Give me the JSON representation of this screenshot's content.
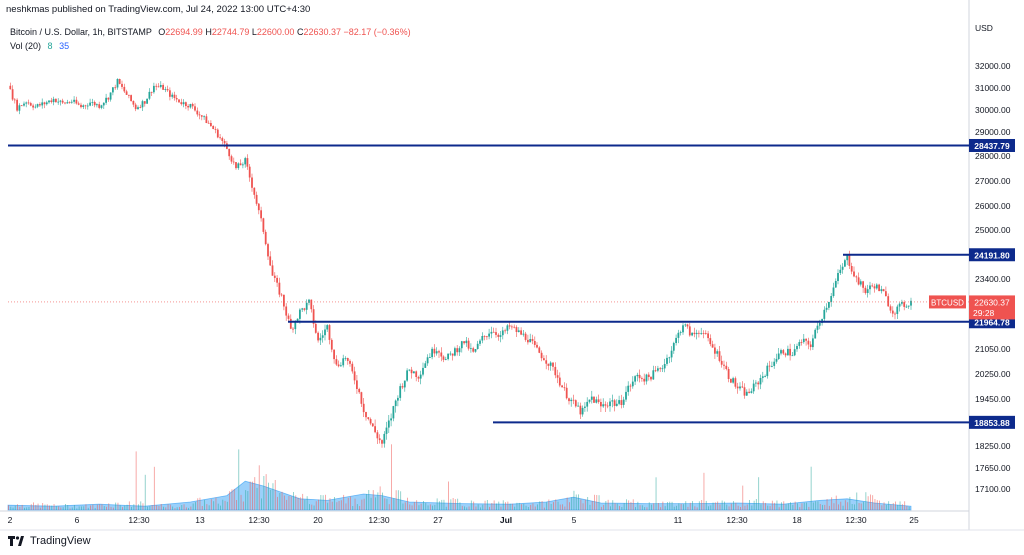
{
  "header": {
    "published": "neshkmas published on TradingView.com, Jul 24, 2022 13:00 UTC+4:30"
  },
  "legend": {
    "symbol": "Bitcoin / U.S. Dollar, 1h, BITSTAMP",
    "open_label": "O",
    "open": "22694.99",
    "high_label": "H",
    "high": "22744.79",
    "low_label": "L",
    "low": "22600.00",
    "close_label": "C",
    "close": "22630.37",
    "change": "−82.17 (−0.36%)",
    "vol_label": "Vol (20)",
    "vol_value": "8",
    "vol_ma": "35"
  },
  "footer": {
    "brand": "TradingView"
  },
  "colors": {
    "up": "#26a69a",
    "down": "#ef5350",
    "level_line": "#0d2a8c",
    "volume": "#2196f3",
    "price_tag": "#ef5350"
  },
  "chart_data": {
    "type": "candlestick",
    "currency_label": "USD",
    "y_ticks": [
      32000,
      31000,
      30000,
      29000,
      28000,
      27000,
      26000,
      25000,
      23400,
      21050,
      20250,
      19450,
      18250,
      17650,
      17100
    ],
    "y_tick_labels": [
      "32000.00",
      "31000.00",
      "30000.00",
      "29000.00",
      "28000.00",
      "27000.00",
      "26000.00",
      "25000.00",
      "23400.00",
      "21050.00",
      "20250.00",
      "19450.00",
      "18250.00",
      "17650.00",
      "17100.00"
    ],
    "x_tick_labels": [
      "2",
      "6",
      "12:30",
      "13",
      "12:30",
      "20",
      "12:30",
      "27",
      "Jul",
      "5",
      "11",
      "12:30",
      "18",
      "12:30",
      "25"
    ],
    "x_tick_bold": [
      false,
      false,
      false,
      false,
      false,
      false,
      false,
      false,
      true,
      false,
      false,
      false,
      false,
      false,
      false
    ],
    "horizontal_levels": [
      {
        "value": 28437.79,
        "label": "28437.79"
      },
      {
        "value": 24191.8,
        "label": "24191.80"
      },
      {
        "value": 21964.78,
        "label": "21964.78"
      },
      {
        "value": 18853.88,
        "label": "18853.88"
      }
    ],
    "current_price": {
      "symbol": "BTCUSD",
      "value": 22630.37,
      "label": "22630.37",
      "countdown": "29:28"
    },
    "close_path": [
      [
        0,
        31100
      ],
      [
        2,
        30100
      ],
      [
        4,
        30400
      ],
      [
        6,
        30150
      ],
      [
        8,
        30300
      ],
      [
        10,
        30500
      ],
      [
        12,
        30300
      ],
      [
        14,
        30400
      ],
      [
        16,
        30150
      ],
      [
        18,
        30350
      ],
      [
        20,
        30200
      ],
      [
        22,
        30600
      ],
      [
        24,
        31300
      ],
      [
        26,
        30700
      ],
      [
        28,
        30100
      ],
      [
        30,
        30400
      ],
      [
        32,
        31100
      ],
      [
        34,
        31000
      ],
      [
        36,
        30600
      ],
      [
        38,
        30350
      ],
      [
        40,
        30200
      ],
      [
        42,
        29800
      ],
      [
        44,
        29400
      ],
      [
        46,
        28900
      ],
      [
        48,
        28300
      ],
      [
        50,
        27500
      ],
      [
        52,
        27800
      ],
      [
        54,
        26500
      ],
      [
        56,
        25000
      ],
      [
        58,
        23500
      ],
      [
        60,
        22800
      ],
      [
        62,
        21700
      ],
      [
        64,
        22300
      ],
      [
        66,
        22600
      ],
      [
        68,
        21300
      ],
      [
        70,
        21800
      ],
      [
        72,
        20500
      ],
      [
        74,
        20800
      ],
      [
        76,
        20100
      ],
      [
        78,
        19200
      ],
      [
        80,
        18700
      ],
      [
        82,
        18300
      ],
      [
        84,
        19000
      ],
      [
        86,
        19800
      ],
      [
        88,
        20400
      ],
      [
        90,
        20200
      ],
      [
        92,
        20800
      ],
      [
        94,
        21100
      ],
      [
        96,
        20700
      ],
      [
        98,
        21000
      ],
      [
        100,
        21300
      ],
      [
        102,
        20900
      ],
      [
        104,
        21400
      ],
      [
        106,
        21700
      ],
      [
        108,
        21500
      ],
      [
        110,
        21800
      ],
      [
        112,
        21600
      ],
      [
        114,
        21400
      ],
      [
        116,
        21000
      ],
      [
        118,
        20700
      ],
      [
        120,
        20300
      ],
      [
        122,
        19700
      ],
      [
        124,
        19300
      ],
      [
        126,
        19100
      ],
      [
        128,
        19500
      ],
      [
        130,
        19250
      ],
      [
        132,
        19400
      ],
      [
        134,
        19300
      ],
      [
        136,
        19800
      ],
      [
        138,
        20200
      ],
      [
        140,
        20100
      ],
      [
        142,
        20300
      ],
      [
        144,
        20600
      ],
      [
        146,
        21200
      ],
      [
        148,
        21900
      ],
      [
        150,
        21500
      ],
      [
        152,
        21700
      ],
      [
        154,
        21200
      ],
      [
        156,
        20800
      ],
      [
        158,
        20200
      ],
      [
        160,
        19800
      ],
      [
        162,
        19600
      ],
      [
        164,
        19900
      ],
      [
        166,
        20300
      ],
      [
        168,
        20700
      ],
      [
        170,
        21000
      ],
      [
        172,
        20900
      ],
      [
        174,
        21300
      ],
      [
        176,
        21200
      ],
      [
        178,
        22000
      ],
      [
        180,
        22700
      ],
      [
        182,
        23500
      ],
      [
        184,
        24100
      ],
      [
        186,
        23400
      ],
      [
        188,
        23000
      ],
      [
        190,
        23200
      ],
      [
        192,
        22900
      ],
      [
        194,
        22300
      ],
      [
        196,
        22500
      ],
      [
        198,
        22630
      ]
    ],
    "volume_profile": [
      [
        0,
        0.15
      ],
      [
        10,
        0.12
      ],
      [
        20,
        0.18
      ],
      [
        30,
        0.12
      ],
      [
        40,
        0.25
      ],
      [
        48,
        0.45
      ],
      [
        52,
        0.9
      ],
      [
        56,
        0.75
      ],
      [
        60,
        0.55
      ],
      [
        64,
        0.35
      ],
      [
        70,
        0.3
      ],
      [
        78,
        0.5
      ],
      [
        82,
        0.45
      ],
      [
        88,
        0.25
      ],
      [
        100,
        0.2
      ],
      [
        110,
        0.18
      ],
      [
        118,
        0.25
      ],
      [
        124,
        0.4
      ],
      [
        130,
        0.22
      ],
      [
        140,
        0.2
      ],
      [
        150,
        0.2
      ],
      [
        160,
        0.22
      ],
      [
        170,
        0.18
      ],
      [
        178,
        0.3
      ],
      [
        184,
        0.35
      ],
      [
        190,
        0.22
      ],
      [
        198,
        0.12
      ]
    ]
  }
}
